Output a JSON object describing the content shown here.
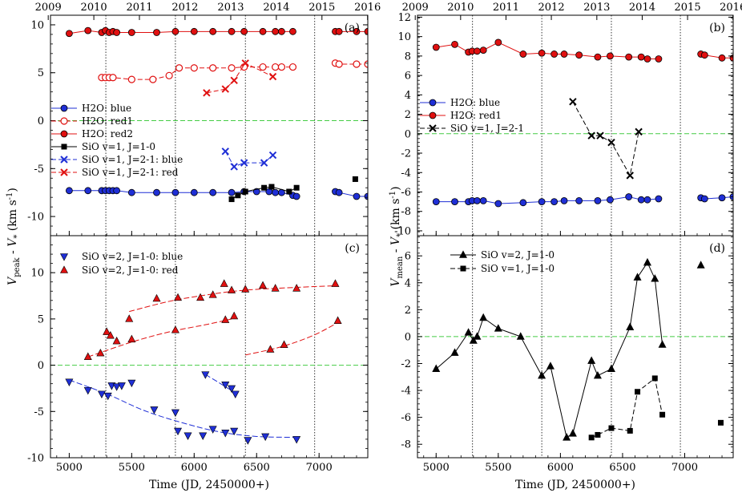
{
  "figure": {
    "xlabel": "Time  (JD, 2450000+)",
    "ylabel_left": "V_peak - V_* (km s^-1)",
    "ylabel_right": "V_mean - V_* (km s^-1)",
    "x_ticks": [
      5000,
      5500,
      6000,
      6500,
      7000
    ],
    "year_ticks": [
      {
        "label": "2009",
        "jd": 4832
      },
      {
        "label": "2010",
        "jd": 5197
      },
      {
        "label": "2011",
        "jd": 5562
      },
      {
        "label": "2012",
        "jd": 5927
      },
      {
        "label": "2013",
        "jd": 6293
      },
      {
        "label": "2014",
        "jd": 6658
      },
      {
        "label": "2015",
        "jd": 7023
      },
      {
        "label": "2016",
        "jd": 7388
      }
    ],
    "vertical_reference_lines": [
      5293,
      5850,
      6410,
      6965
    ],
    "xlim": [
      4850,
      7390
    ],
    "colors": {
      "blue": "#1f2fd6",
      "red": "#e01010",
      "black": "#000000",
      "zero_line": "#44cc44"
    }
  },
  "chart_data": [
    {
      "panel": "(a)",
      "type": "line",
      "xlim": [
        4850,
        7390
      ],
      "ylim": [
        -12,
        11
      ],
      "y_ticks": [
        10,
        5,
        0,
        -5,
        -10
      ],
      "series": [
        {
          "name": "H2O: blue",
          "color": "#1f2fd6",
          "marker": "circle-filled",
          "line": "solid",
          "x": [
            5000,
            5150,
            5260,
            5290,
            5320,
            5350,
            5380,
            5500,
            5700,
            5850,
            6000,
            6150,
            6300,
            6400,
            6500,
            6600,
            6650,
            6700,
            6790,
            6820
          ],
          "y": [
            -7.3,
            -7.3,
            -7.3,
            -7.3,
            -7.3,
            -7.3,
            -7.3,
            -7.5,
            -7.5,
            -7.5,
            -7.5,
            -7.5,
            -7.5,
            -7.4,
            -7.4,
            -7.4,
            -7.5,
            -7.5,
            -7.8,
            -7.9
          ]
        },
        {
          "name": "H2O: blue (2015)",
          "color": "#1f2fd6",
          "marker": "circle-filled",
          "line": "solid",
          "legend": false,
          "x": [
            7130,
            7160,
            7300,
            7390
          ],
          "y": [
            -7.4,
            -7.5,
            -7.9,
            -7.9
          ]
        },
        {
          "name": "H2O: red1",
          "color": "#e01010",
          "marker": "circle-open",
          "line": "dashed",
          "x": [
            5260,
            5290,
            5320,
            5350,
            5500,
            5670,
            5800,
            5880,
            6000,
            6150,
            6300,
            6400,
            6550,
            6650,
            6700,
            6790
          ],
          "y": [
            4.5,
            4.5,
            4.5,
            4.5,
            4.3,
            4.3,
            4.7,
            5.5,
            5.5,
            5.5,
            5.5,
            5.6,
            5.6,
            5.6,
            5.6,
            5.6
          ]
        },
        {
          "name": "H2O: red1 (2015)",
          "color": "#e01010",
          "marker": "circle-open",
          "line": "dashed",
          "legend": false,
          "x": [
            7130,
            7160,
            7300,
            7390
          ],
          "y": [
            6.0,
            5.9,
            5.9,
            5.9
          ]
        },
        {
          "name": "H2O: red2",
          "color": "#e01010",
          "marker": "circle-filled",
          "line": "solid",
          "x": [
            5000,
            5150,
            5260,
            5290,
            5320,
            5350,
            5380,
            5500,
            5700,
            5850,
            6000,
            6150,
            6300,
            6400,
            6550,
            6650,
            6700,
            6790
          ],
          "y": [
            9.1,
            9.4,
            9.2,
            9.4,
            9.2,
            9.3,
            9.2,
            9.2,
            9.2,
            9.3,
            9.3,
            9.3,
            9.3,
            9.3,
            9.3,
            9.3,
            9.3,
            9.3
          ]
        },
        {
          "name": "H2O: red2 (2015)",
          "color": "#e01010",
          "marker": "circle-filled",
          "line": "solid",
          "legend": false,
          "x": [
            7130,
            7160,
            7300,
            7390
          ],
          "y": [
            9.3,
            9.3,
            9.3,
            9.3
          ]
        },
        {
          "name": "SiO v=1, J=1-0",
          "color": "#000000",
          "marker": "square-filled",
          "line": "solid",
          "x": [
            6300,
            6350,
            6410,
            6560,
            6620,
            6760,
            6820
          ],
          "y": [
            -8.2,
            -7.8,
            -7.4,
            -7.0,
            -6.9,
            -7.4,
            -7.0
          ]
        },
        {
          "name": "SiO v=1, J=1-0 (isolated)",
          "color": "#000000",
          "marker": "square-filled",
          "line": "none",
          "legend": false,
          "x": [
            7290
          ],
          "y": [
            -6.1
          ]
        },
        {
          "name": "SiO v=1, J=2-1: blue",
          "color": "#1f2fd6",
          "marker": "x",
          "line": "dashed",
          "x": [
            6250,
            6320,
            6400,
            6560,
            6630
          ],
          "y": [
            -3.2,
            -4.8,
            -4.4,
            -4.4,
            -3.6
          ]
        },
        {
          "name": "SiO v=1, J=2-1: red",
          "color": "#e01010",
          "marker": "x",
          "line": "dashed",
          "x": [
            6100,
            6250,
            6320,
            6410,
            6630
          ],
          "y": [
            2.9,
            3.3,
            4.2,
            6.0,
            4.6
          ]
        }
      ],
      "legend_labels": [
        "H2O: blue",
        "H2O: red1",
        "H2O: red2",
        "SiO v=1, J=1-0",
        "SiO v=1, J=2-1: blue",
        "SiO v=1, J=2-1: red"
      ],
      "zero_line": true
    },
    {
      "panel": "(b)",
      "type": "line",
      "xlim": [
        4850,
        7390
      ],
      "ylim": [
        -10.5,
        12.2
      ],
      "y_ticks": [
        12,
        10,
        8,
        6,
        4,
        2,
        0,
        -2,
        -4,
        -6,
        -8,
        -10
      ],
      "series": [
        {
          "name": "H2O: blue",
          "color": "#1f2fd6",
          "marker": "circle-filled",
          "line": "solid",
          "x": [
            5000,
            5150,
            5260,
            5290,
            5330,
            5380,
            5500,
            5700,
            5850,
            5950,
            6030,
            6150,
            6300,
            6400,
            6550,
            6650,
            6700,
            6790
          ],
          "y": [
            -7.0,
            -7.0,
            -7.0,
            -6.9,
            -6.9,
            -6.9,
            -7.2,
            -7.1,
            -7.0,
            -7.0,
            -6.9,
            -6.9,
            -6.9,
            -6.8,
            -6.5,
            -6.8,
            -6.8,
            -6.7
          ]
        },
        {
          "name": "H2O: blue (2015)",
          "color": "#1f2fd6",
          "marker": "circle-filled",
          "line": "solid",
          "legend": false,
          "x": [
            7130,
            7160,
            7300,
            7390
          ],
          "y": [
            -6.6,
            -6.7,
            -6.6,
            -6.5
          ]
        },
        {
          "name": "H2O: red1",
          "color": "#e01010",
          "marker": "circle-filled",
          "line": "solid",
          "x": [
            5000,
            5150,
            5260,
            5290,
            5330,
            5380,
            5500,
            5700,
            5850,
            5950,
            6030,
            6150,
            6300,
            6400,
            6550,
            6650,
            6700,
            6790
          ],
          "y": [
            8.9,
            9.2,
            8.4,
            8.5,
            8.5,
            8.6,
            9.4,
            8.2,
            8.3,
            8.2,
            8.2,
            8.1,
            7.9,
            8.0,
            7.9,
            7.9,
            7.7,
            7.7
          ]
        },
        {
          "name": "H2O: red1 (2015)",
          "color": "#e01010",
          "marker": "circle-filled",
          "line": "solid",
          "legend": false,
          "x": [
            7130,
            7160,
            7300,
            7390
          ],
          "y": [
            8.2,
            8.1,
            7.8,
            7.8
          ]
        },
        {
          "name": "SiO v=1, J=2-1",
          "color": "#000000",
          "marker": "x",
          "line": "dashed",
          "x": [
            6100,
            6250,
            6320,
            6410,
            6560,
            6630
          ],
          "y": [
            3.3,
            -0.2,
            -0.2,
            -0.9,
            -4.3,
            0.2
          ]
        }
      ],
      "legend_labels": [
        "H2O: blue",
        "H2O: red1",
        "SiO v=1, J=2-1"
      ],
      "zero_line": true
    },
    {
      "panel": "(c)",
      "type": "scatter",
      "xlim": [
        4850,
        7390
      ],
      "ylim": [
        -10,
        14
      ],
      "y_ticks": [
        10,
        5,
        0,
        -5,
        -10
      ],
      "series": [
        {
          "name": "SiO v=2, J=1-0: blue",
          "color": "#1f2fd6",
          "marker": "triangle-down",
          "x": [
            5000,
            5150,
            5260,
            5310,
            5340,
            5380,
            5420,
            5500,
            5680,
            5850,
            5870,
            5950,
            6070,
            6150,
            6250,
            6320,
            6430,
            6570,
            6820
          ],
          "y": [
            -1.8,
            -2.7,
            -3.1,
            -3.3,
            -2.2,
            -2.3,
            -2.2,
            -1.9,
            -4.8,
            -5.1,
            -7.1,
            -7.6,
            -7.6,
            -6.9,
            -7.3,
            -7.1,
            -8.1,
            -7.7,
            -8.0
          ]
        },
        {
          "name": "SiO v=2, J=1-0: blue (2)",
          "color": "#1f2fd6",
          "marker": "triangle-down",
          "legend": false,
          "x": [
            6090,
            6250,
            6300,
            6330
          ],
          "y": [
            -1.0,
            -2.1,
            -2.5,
            -3.1
          ]
        },
        {
          "name": "SiO v=2, J=1-0: red",
          "color": "#e01010",
          "marker": "triangle-up",
          "x": [
            5150,
            5250,
            5300,
            5330,
            5380,
            5500,
            5700,
            5850,
            5870,
            6050,
            6150,
            6240,
            6300,
            6410,
            6550,
            6610,
            6720,
            6820
          ],
          "y": [
            0.9,
            1.3,
            3.6,
            3.2,
            2.6,
            2.8,
            7.2,
            3.8,
            7.3,
            7.3,
            7.6,
            8.8,
            8.1,
            8.2,
            8.6,
            1.7,
            2.2,
            8.3
          ]
        },
        {
          "name": "SiO v=2, J=1-0: red (extra)",
          "color": "#e01010",
          "marker": "triangle-up",
          "legend": false,
          "x": [
            5480,
            6250,
            6320,
            6650,
            7130,
            7150
          ],
          "y": [
            5.0,
            4.9,
            5.3,
            8.3,
            8.8,
            4.8
          ]
        }
      ],
      "fit_curves": [
        {
          "color": "#e01010",
          "x": [
            5150,
            5500,
            5800,
            6100,
            6300
          ],
          "y": [
            0.9,
            2.5,
            3.6,
            4.4,
            5.0
          ]
        },
        {
          "color": "#e01010",
          "x": [
            5480,
            5800,
            6100,
            6400,
            6800,
            7150
          ],
          "y": [
            5.8,
            6.9,
            7.6,
            8.1,
            8.4,
            8.6
          ]
        },
        {
          "color": "#e01010",
          "x": [
            6410,
            6700,
            6950,
            7150
          ],
          "y": [
            1.1,
            2.0,
            3.2,
            4.6
          ]
        },
        {
          "color": "#1f2fd6",
          "x": [
            5000,
            5300,
            5600,
            5900,
            6200,
            6500,
            6820
          ],
          "y": [
            -1.6,
            -3.1,
            -4.9,
            -6.2,
            -7.2,
            -7.7,
            -7.8
          ]
        },
        {
          "color": "#1f2fd6",
          "x": [
            6090,
            6200,
            6330
          ],
          "y": [
            -1.0,
            -1.9,
            -3.0
          ]
        }
      ],
      "legend_labels": [
        "SiO v=2, J=1-0: blue",
        "SiO v=2, J=1-0: red"
      ],
      "zero_line": true
    },
    {
      "panel": "(d)",
      "type": "line",
      "xlim": [
        4850,
        7390
      ],
      "ylim": [
        -9,
        7.5
      ],
      "y_ticks": [
        6,
        4,
        2,
        0,
        -2,
        -4,
        -6,
        -8
      ],
      "series": [
        {
          "name": "SiO v=2, J=1-0",
          "color": "#000000",
          "marker": "triangle-up",
          "line": "solid",
          "x": [
            5000,
            5150,
            5260,
            5300,
            5330,
            5380,
            5500,
            5680,
            5850,
            5920,
            6050,
            6100,
            6250,
            6300,
            6410,
            6560,
            6620,
            6700,
            6760,
            6820
          ],
          "y": [
            -2.4,
            -1.2,
            0.3,
            -0.3,
            0.0,
            1.4,
            0.6,
            0.0,
            -2.9,
            -2.2,
            -7.5,
            -7.2,
            -1.8,
            -2.9,
            -2.4,
            0.7,
            4.4,
            5.5,
            4.3,
            -0.6
          ]
        },
        {
          "name": "SiO v=2, J=1-0 (isolated)",
          "color": "#000000",
          "marker": "triangle-up",
          "line": "none",
          "legend": false,
          "x": [
            7130
          ],
          "y": [
            5.3
          ]
        },
        {
          "name": "SiO v=1, J=1-0",
          "color": "#000000",
          "marker": "square-filled",
          "line": "dashed",
          "x": [
            6250,
            6300,
            6410,
            6560,
            6620,
            6760,
            6820
          ],
          "y": [
            -7.5,
            -7.3,
            -6.8,
            -7.0,
            -4.1,
            -3.1,
            -5.8
          ]
        },
        {
          "name": "SiO v=1, J=1-0 (isolated)",
          "color": "#000000",
          "marker": "square-filled",
          "line": "none",
          "legend": false,
          "x": [
            7290
          ],
          "y": [
            -6.4
          ]
        }
      ],
      "legend_labels": [
        "SiO v=2, J=1-0",
        "SiO v=1, J=1-0"
      ],
      "zero_line": true
    }
  ]
}
